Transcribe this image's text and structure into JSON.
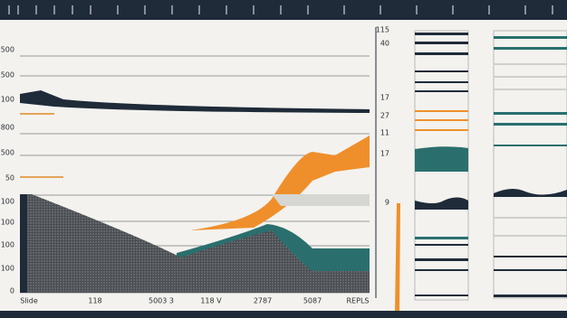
{
  "left_labels": [
    "500",
    "500",
    "100",
    "800",
    "500",
    "50",
    "100",
    "100",
    "100",
    "100",
    "0"
  ],
  "right_labels": [
    "115",
    "40",
    "17",
    "27",
    "11",
    "17",
    "9"
  ],
  "bottom_labels": [
    "Slide",
    "118",
    "5003 3",
    "118 V",
    "2787",
    "5087",
    "REPLS"
  ]
}
